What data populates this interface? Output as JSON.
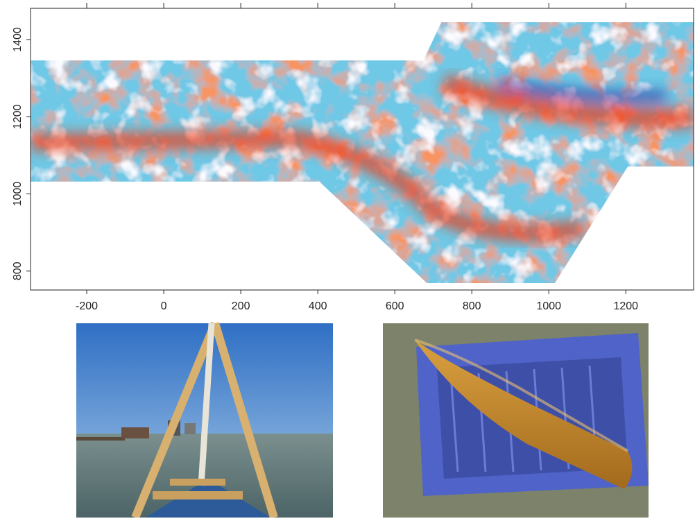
{
  "chart_data": {
    "type": "map",
    "xlim": [
      -346,
      1376
    ],
    "ylim": [
      751,
      1481
    ],
    "xticks": [
      -200,
      0,
      200,
      400,
      600,
      800,
      1000,
      1200
    ],
    "yticks": [
      800,
      1000,
      1200,
      1400
    ],
    "survey_area": {
      "x": [
        -346,
        674,
        721,
        1376,
        1376,
        1205,
        1016,
        683,
        404,
        -346
      ],
      "y": [
        1346,
        1346,
        1445,
        1445,
        1071,
        1071,
        769,
        769,
        1032,
        1032
      ]
    }
  }
}
